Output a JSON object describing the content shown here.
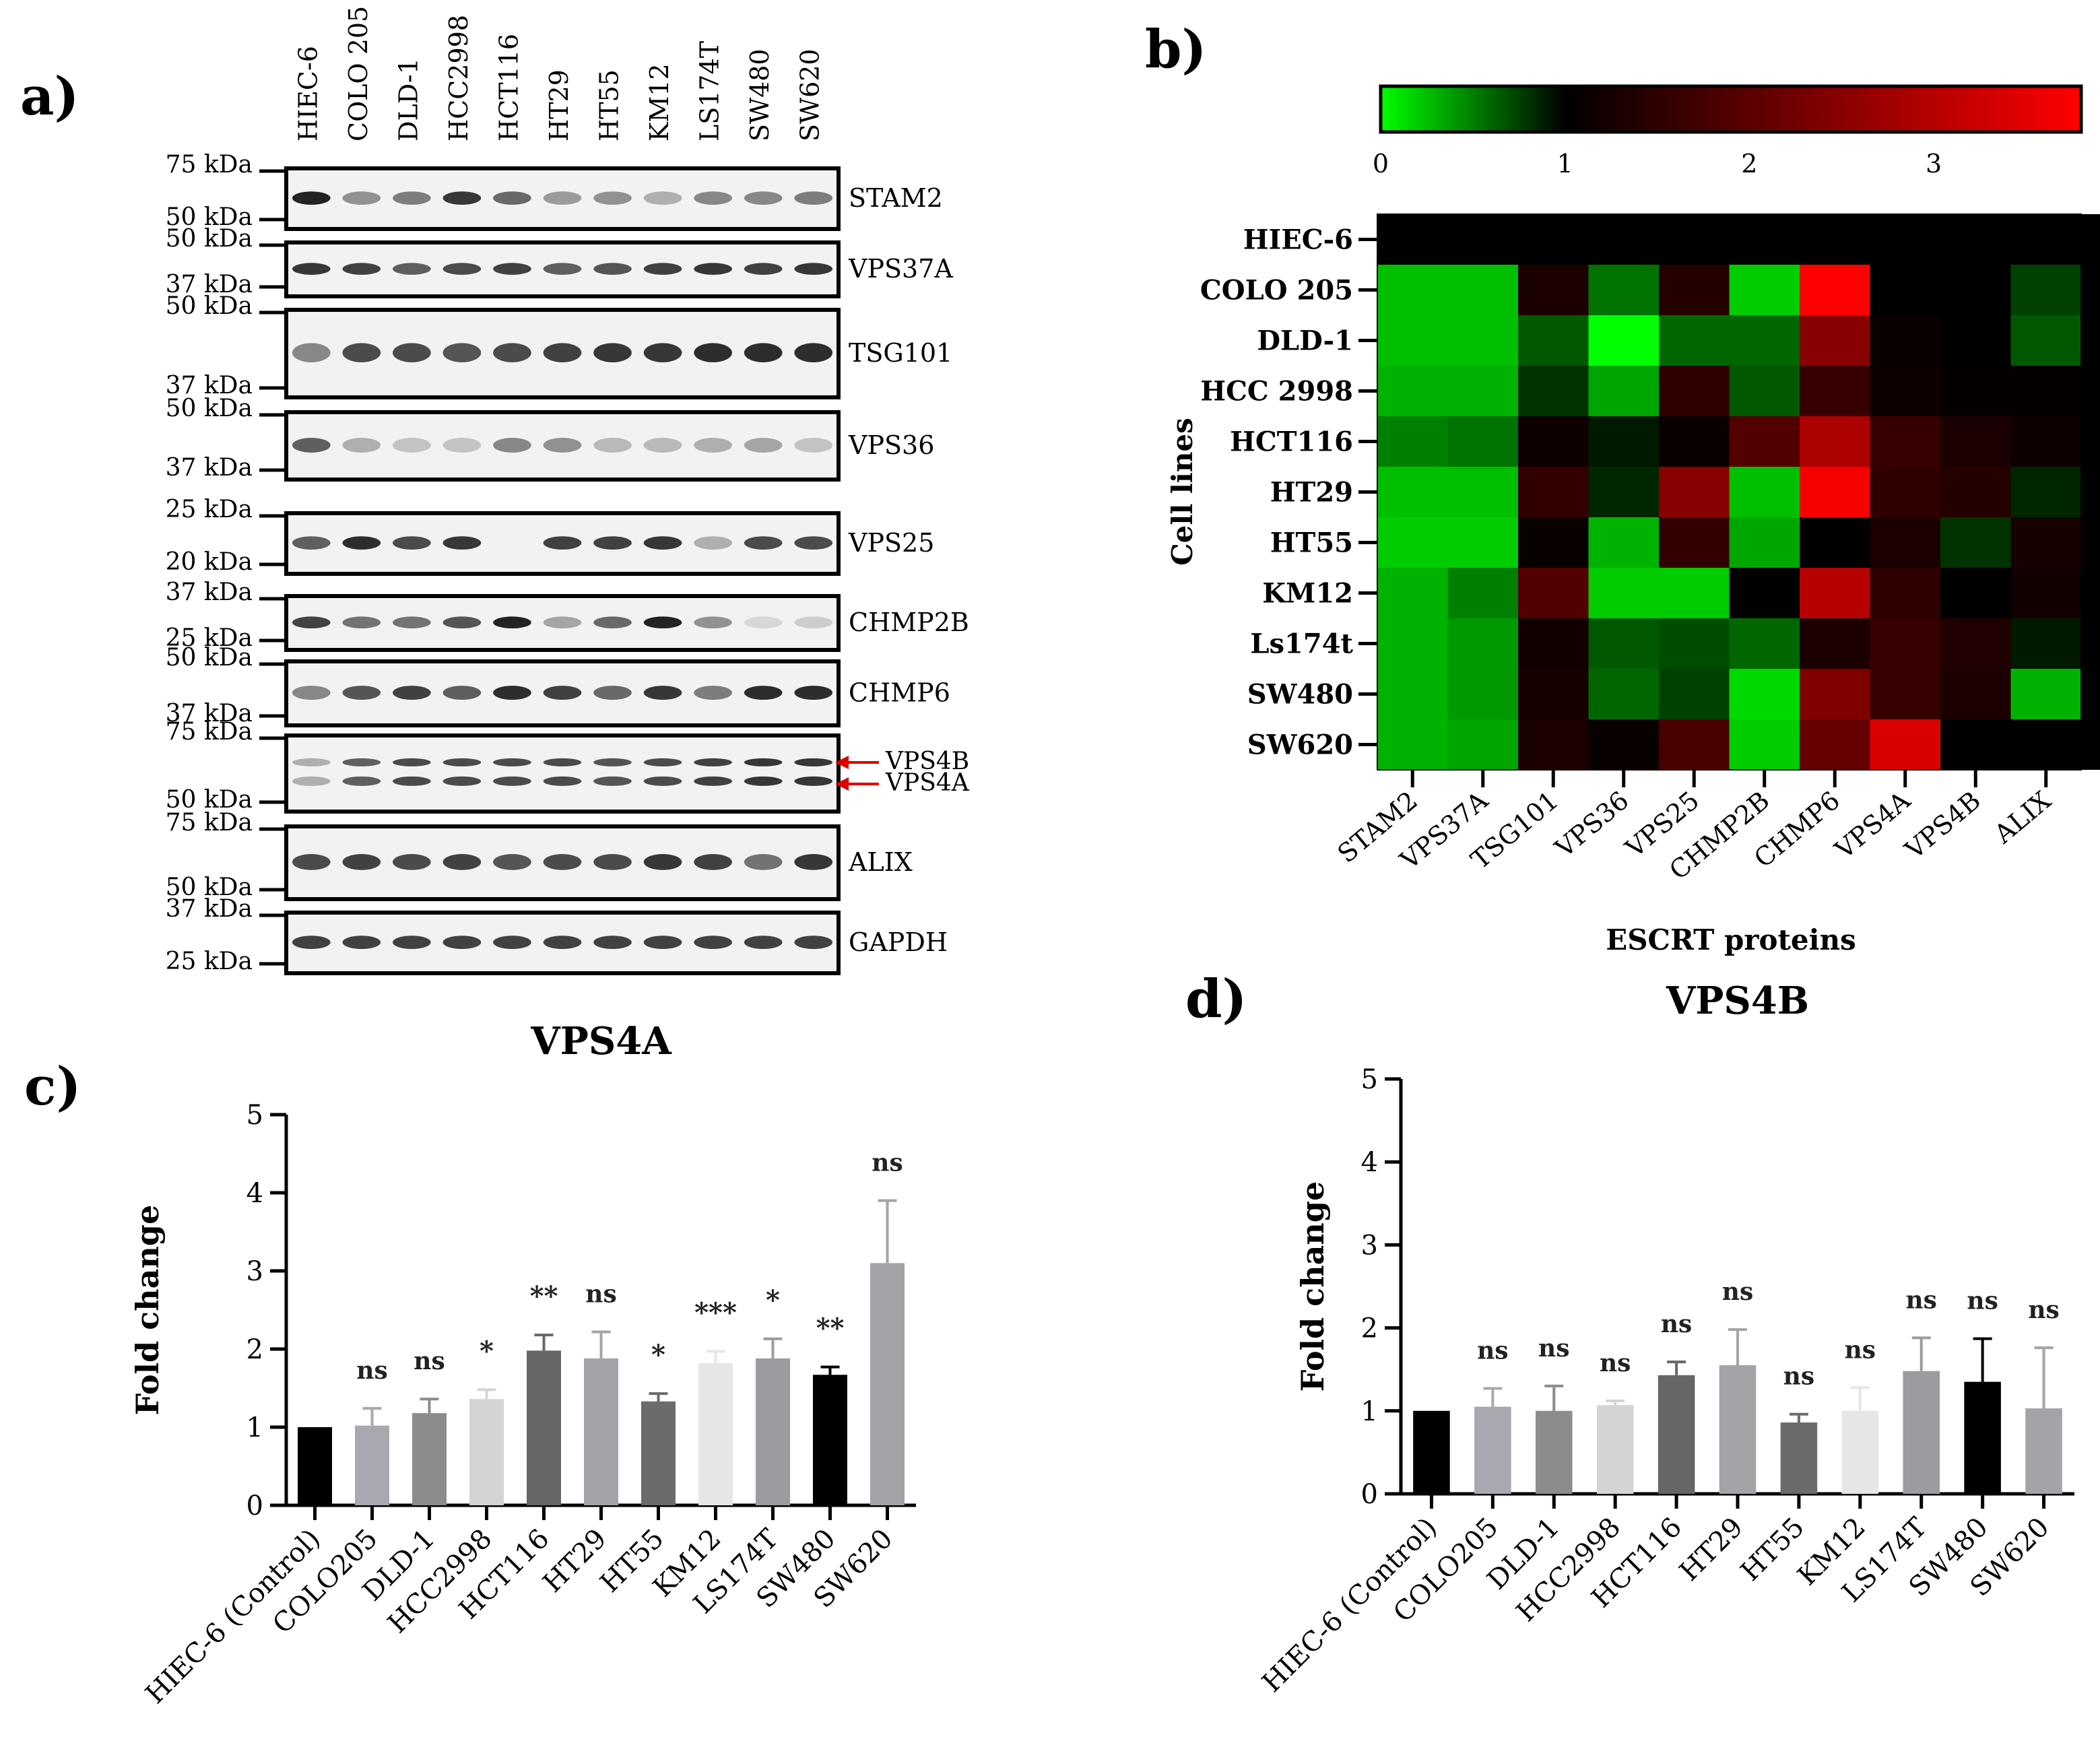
{
  "panels": {
    "a": "a)",
    "b": "b)",
    "c": "c)",
    "d": "d)"
  },
  "blot": {
    "lanes": [
      "HIEC-6",
      "COLO 205",
      "DLD-1",
      "HCC2998",
      "HCT116",
      "HT29",
      "HT55",
      "KM12",
      "LS174T",
      "SW480",
      "SW620"
    ],
    "rows": [
      {
        "label": "STAM2",
        "top_marker": "75 kDa",
        "bottom_marker": "50 kDa",
        "intensity": [
          1.0,
          0.45,
          0.55,
          0.9,
          0.65,
          0.4,
          0.45,
          0.3,
          0.5,
          0.5,
          0.55
        ]
      },
      {
        "label": "VPS37A",
        "top_marker": "50 kDa",
        "bottom_marker": "37 kDa",
        "intensity": [
          0.9,
          0.85,
          0.7,
          0.8,
          0.85,
          0.7,
          0.75,
          0.85,
          0.9,
          0.85,
          0.9
        ]
      },
      {
        "label": "TSG101",
        "top_marker": "50 kDa",
        "bottom_marker": "37 kDa",
        "intensity": [
          0.5,
          0.8,
          0.8,
          0.75,
          0.8,
          0.85,
          0.9,
          0.9,
          0.95,
          0.95,
          0.95
        ]
      },
      {
        "label": "VPS36",
        "top_marker": "50 kDa",
        "bottom_marker": "37 kDa",
        "intensity": [
          0.7,
          0.3,
          0.2,
          0.2,
          0.5,
          0.45,
          0.25,
          0.25,
          0.3,
          0.35,
          0.2
        ]
      },
      {
        "label": "VPS25",
        "top_marker": "25 kDa",
        "bottom_marker": "20 kDa",
        "intensity": [
          0.7,
          0.95,
          0.8,
          0.9,
          0.0,
          0.85,
          0.85,
          0.9,
          0.3,
          0.8,
          0.8
        ]
      },
      {
        "label": "CHMP2B",
        "top_marker": "37 kDa",
        "bottom_marker": "25 kDa",
        "intensity": [
          0.85,
          0.6,
          0.6,
          0.75,
          1.0,
          0.35,
          0.65,
          1.0,
          0.45,
          0.1,
          0.15
        ]
      },
      {
        "label": "CHMP6",
        "top_marker": "50 kDa",
        "bottom_marker": "37 kDa",
        "intensity": [
          0.5,
          0.75,
          0.85,
          0.7,
          0.95,
          0.85,
          0.65,
          0.9,
          0.55,
          0.95,
          0.95
        ]
      },
      {
        "label": "VPS4B",
        "label2": "VPS4A",
        "top_marker": "75 kDa",
        "bottom_marker": "50 kDa",
        "intensity": [
          0.3,
          0.7,
          0.8,
          0.8,
          0.8,
          0.8,
          0.75,
          0.8,
          0.85,
          0.9,
          0.9
        ]
      },
      {
        "label": "ALIX",
        "top_marker": "75 kDa",
        "bottom_marker": "50 kDa",
        "intensity": [
          0.8,
          0.85,
          0.8,
          0.85,
          0.75,
          0.8,
          0.8,
          0.9,
          0.85,
          0.6,
          0.9
        ]
      },
      {
        "label": "GAPDH",
        "top_marker": "37 kDa",
        "bottom_marker": "25 kDa",
        "intensity": [
          0.85,
          0.85,
          0.85,
          0.85,
          0.85,
          0.85,
          0.85,
          0.85,
          0.85,
          0.85,
          0.85
        ]
      }
    ]
  },
  "chart_data": [
    {
      "type": "heatmap",
      "panel": "b)",
      "xlabel": "ESCRT proteins",
      "ylabel": "Cell lines",
      "rows": [
        "HIEC-6",
        "COLO 205",
        "DLD-1",
        "HCC 2998",
        "HCT116",
        "HT29",
        "HT55",
        "KM12",
        "Ls174t",
        "SW480",
        "SW620"
      ],
      "cols": [
        "STAM2",
        "VPS37A",
        "TSG101",
        "VPS36",
        "VPS25",
        "CHMP2B",
        "CHMP6",
        "VPS4A",
        "VPS4B",
        "ALIX"
      ],
      "colorbar_ticks": [
        "0",
        "1",
        "2",
        "3"
      ],
      "colorbar_range": [
        0,
        3.8
      ],
      "colorbar_colors": [
        "#00ff00",
        "#000000",
        "#ff0000"
      ],
      "values": [
        [
          1.0,
          1.0,
          1.0,
          1.0,
          1.0,
          1.0,
          1.0,
          1.0,
          1.0,
          1.0
        ],
        [
          0.25,
          0.25,
          1.3,
          0.55,
          1.4,
          0.2,
          3.8,
          1.0,
          1.0,
          0.75
        ],
        [
          0.25,
          0.25,
          0.65,
          0.0,
          0.6,
          0.6,
          2.5,
          1.1,
          1.0,
          0.65
        ],
        [
          0.3,
          0.3,
          0.8,
          0.35,
          1.5,
          0.65,
          1.6,
          1.15,
          1.05,
          1.05
        ],
        [
          0.5,
          0.55,
          1.15,
          0.9,
          1.1,
          1.9,
          2.9,
          1.6,
          1.3,
          1.15
        ],
        [
          0.25,
          0.25,
          1.55,
          0.85,
          2.5,
          0.25,
          3.7,
          1.5,
          1.4,
          0.85
        ],
        [
          0.2,
          0.2,
          1.1,
          0.3,
          1.55,
          0.35,
          1.0,
          1.3,
          0.8,
          1.25
        ],
        [
          0.3,
          0.5,
          1.9,
          0.2,
          0.2,
          1.0,
          3.0,
          1.5,
          1.0,
          1.2
        ],
        [
          0.3,
          0.4,
          1.2,
          0.65,
          0.7,
          0.6,
          1.3,
          1.6,
          1.35,
          0.9
        ],
        [
          0.3,
          0.4,
          1.25,
          0.6,
          0.75,
          0.15,
          2.4,
          1.6,
          1.3,
          0.3
        ],
        [
          0.3,
          0.35,
          1.3,
          1.1,
          1.8,
          0.2,
          2.1,
          3.4,
          1.0,
          1.0
        ]
      ]
    },
    {
      "type": "bar",
      "panel": "c)",
      "title": "VPS4A",
      "xlabel": "",
      "ylabel": "Fold change",
      "ylim": [
        0,
        5
      ],
      "yticks": [
        "0",
        "1",
        "2",
        "3",
        "4",
        "5"
      ],
      "categories": [
        "HIEC-6 (Control)",
        "COLO205",
        "DLD-1",
        "HCC2998",
        "HCT116",
        "HT29",
        "HT55",
        "KM12",
        "LS174T",
        "SW480",
        "SW620"
      ],
      "values": [
        1.0,
        1.02,
        1.18,
        1.36,
        1.98,
        1.88,
        1.33,
        1.82,
        1.88,
        1.67,
        3.1
      ],
      "errors": [
        0.0,
        0.22,
        0.18,
        0.12,
        0.2,
        0.34,
        0.1,
        0.15,
        0.25,
        0.1,
        0.8
      ],
      "significance": [
        "",
        "ns",
        "ns",
        "*",
        "**",
        "ns",
        "*",
        "***",
        "*",
        "**",
        "ns"
      ],
      "bar_colors": [
        "#000000",
        "#a8a8b0",
        "#8c8c8c",
        "#d4d4d4",
        "#666666",
        "#a3a3a8",
        "#6b6b6b",
        "#e6e6e6",
        "#9c9ca0",
        "#000000",
        "#a3a3a8"
      ]
    },
    {
      "type": "bar",
      "panel": "d)",
      "title": "VPS4B",
      "xlabel": "",
      "ylabel": "Fold change",
      "ylim": [
        0,
        5
      ],
      "yticks": [
        "0",
        "1",
        "2",
        "3",
        "4",
        "5"
      ],
      "categories": [
        "HIEC-6 (Control)",
        "COLO205",
        "DLD-1",
        "HCC2998",
        "HCT116",
        "HT29",
        "HT55",
        "KM12",
        "LS174T",
        "SW480",
        "SW620"
      ],
      "values": [
        1.0,
        1.05,
        1.0,
        1.07,
        1.43,
        1.55,
        0.86,
        1.0,
        1.48,
        1.35,
        1.03
      ],
      "errors": [
        0.0,
        0.22,
        0.3,
        0.05,
        0.16,
        0.43,
        0.1,
        0.28,
        0.4,
        0.52,
        0.73
      ],
      "significance": [
        "",
        "ns",
        "ns",
        "ns",
        "ns",
        "ns",
        "ns",
        "ns",
        "ns",
        "ns",
        "ns"
      ],
      "bar_colors": [
        "#000000",
        "#a8a8b0",
        "#8c8c8c",
        "#d4d4d4",
        "#666666",
        "#a3a3a8",
        "#6b6b6b",
        "#e6e6e6",
        "#9c9ca0",
        "#000000",
        "#a3a3a8"
      ]
    }
  ]
}
